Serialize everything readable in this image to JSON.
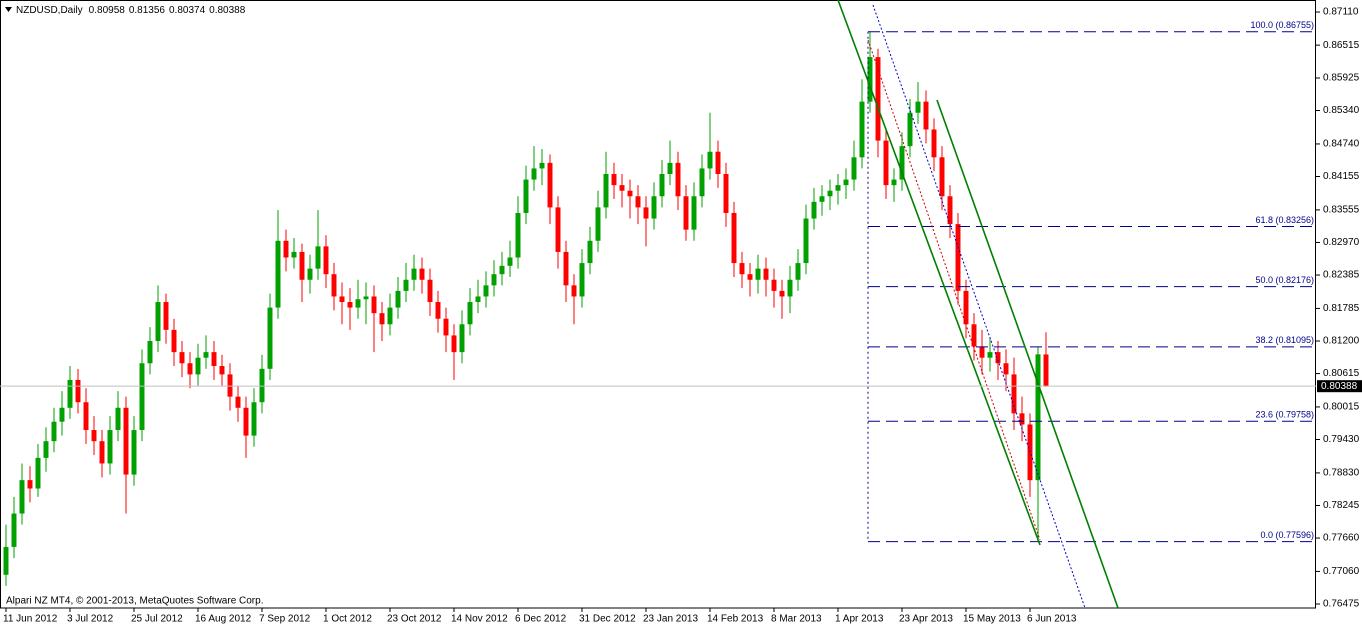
{
  "chart_data": {
    "type": "candlestick",
    "symbol": "NZDUSD,Daily",
    "footer": "Alpari NZ MT4, © 2001-2013, MetaQuotes Software Corp.",
    "bull_color": "#00a000",
    "bear_color": "#ff0000",
    "xlim": [
      -0.75,
      163.75
    ],
    "ylim": [
      0.76403,
      0.87326
    ],
    "xticks": [
      {
        "value": 0,
        "label": "11 Jun 2012"
      },
      {
        "value": 8,
        "label": "3 Jul 2012"
      },
      {
        "value": 16,
        "label": "25 Jul 2012"
      },
      {
        "value": 24,
        "label": "16 Aug 2012"
      },
      {
        "value": 32,
        "label": "7 Sep 2012"
      },
      {
        "value": 40,
        "label": "1 Oct 2012"
      },
      {
        "value": 48,
        "label": "23 Oct 2012"
      },
      {
        "value": 56,
        "label": "14 Nov 2012"
      },
      {
        "value": 64,
        "label": "6 Dec 2012"
      },
      {
        "value": 72,
        "label": "31 Dec 2012"
      },
      {
        "value": 80,
        "label": "23 Jan 2013"
      },
      {
        "value": 88,
        "label": "14 Feb 2013"
      },
      {
        "value": 96,
        "label": "8 Mar 2013"
      },
      {
        "value": 104,
        "label": "1 Apr 2013"
      },
      {
        "value": 112,
        "label": "23 Apr 2013"
      },
      {
        "value": 120,
        "label": "15 May 2013"
      },
      {
        "value": 128,
        "label": "6 Jun 2013"
      }
    ],
    "yticks": [
      {
        "value": 0.8711,
        "label": "0.87110"
      },
      0.86515,
      0.85925,
      {
        "value": 0.8534,
        "label": "0.85340"
      },
      {
        "value": 0.8474,
        "label": "0.84740"
      },
      0.84155,
      0.83555,
      {
        "value": 0.8297,
        "label": "0.82970"
      },
      0.82385,
      0.81785,
      {
        "value": 0.812,
        "label": "0.81200"
      },
      0.80615,
      0.80015,
      {
        "value": 0.7943,
        "label": "0.79430"
      },
      {
        "value": 0.7883,
        "label": "0.78830"
      },
      0.78245,
      {
        "value": 0.7766,
        "label": "0.77660"
      },
      {
        "value": 0.7706,
        "label": "0.77060"
      },
      0.76475
    ],
    "fibonacci": [
      {
        "label": "100.0 (0.86755)",
        "value": 0.86755
      },
      {
        "label": "61.8 (0.83256)",
        "value": 0.83256
      },
      {
        "label": "50.0 (0.82176)",
        "value": 0.82176
      },
      {
        "label": "38.2 (0.81095)",
        "value": 0.81095
      },
      {
        "label": "23.6 (0.79758)",
        "value": 0.79758
      },
      {
        "label": "0.0 (0.77596)",
        "value": 0.77596
      }
    ],
    "ohlc": [
      [
        0.77,
        0.779,
        0.768,
        0.775
      ],
      [
        0.775,
        0.784,
        0.773,
        0.781
      ],
      [
        0.781,
        0.79,
        0.779,
        0.787
      ],
      [
        0.787,
        0.7895,
        0.783,
        0.7855
      ],
      [
        0.7855,
        0.7935,
        0.784,
        0.791
      ],
      [
        0.791,
        0.7965,
        0.7885,
        0.794
      ],
      [
        0.794,
        0.8,
        0.792,
        0.7975
      ],
      [
        0.7975,
        0.803,
        0.795,
        0.8
      ],
      [
        0.8,
        0.8075,
        0.798,
        0.805
      ],
      [
        0.805,
        0.807,
        0.799,
        0.801
      ],
      [
        0.801,
        0.8035,
        0.7935,
        0.796
      ],
      [
        0.796,
        0.7985,
        0.7915,
        0.794
      ],
      [
        0.794,
        0.796,
        0.7875,
        0.79
      ],
      [
        0.79,
        0.7985,
        0.788,
        0.796
      ],
      [
        0.796,
        0.803,
        0.794,
        0.8
      ],
      [
        0.8,
        0.802,
        0.781,
        0.788
      ],
      [
        0.788,
        0.7985,
        0.786,
        0.796
      ],
      [
        0.796,
        0.8105,
        0.794,
        0.808
      ],
      [
        0.808,
        0.8145,
        0.806,
        0.812
      ],
      [
        0.812,
        0.822,
        0.81,
        0.819
      ],
      [
        0.819,
        0.8205,
        0.8115,
        0.814
      ],
      [
        0.814,
        0.816,
        0.8075,
        0.81
      ],
      [
        0.81,
        0.812,
        0.8055,
        0.808
      ],
      [
        0.808,
        0.81,
        0.8035,
        0.806
      ],
      [
        0.806,
        0.8115,
        0.804,
        0.809
      ],
      [
        0.809,
        0.813,
        0.807,
        0.81
      ],
      [
        0.81,
        0.812,
        0.805,
        0.8075
      ],
      [
        0.8075,
        0.8095,
        0.804,
        0.806
      ],
      [
        0.806,
        0.808,
        0.7995,
        0.802
      ],
      [
        0.802,
        0.804,
        0.7975,
        0.8
      ],
      [
        0.8,
        0.802,
        0.791,
        0.795
      ],
      [
        0.795,
        0.8035,
        0.793,
        0.801
      ],
      [
        0.801,
        0.8095,
        0.799,
        0.807
      ],
      [
        0.807,
        0.8205,
        0.805,
        0.818
      ],
      [
        0.818,
        0.8355,
        0.816,
        0.83
      ],
      [
        0.83,
        0.832,
        0.8245,
        0.827
      ],
      [
        0.827,
        0.8305,
        0.825,
        0.828
      ],
      [
        0.828,
        0.8295,
        0.819,
        0.823
      ],
      [
        0.823,
        0.8275,
        0.8205,
        0.825
      ],
      [
        0.825,
        0.8355,
        0.823,
        0.829
      ],
      [
        0.829,
        0.831,
        0.8215,
        0.824
      ],
      [
        0.824,
        0.826,
        0.8175,
        0.82
      ],
      [
        0.82,
        0.8225,
        0.815,
        0.819
      ],
      [
        0.819,
        0.8215,
        0.814,
        0.818
      ],
      [
        0.818,
        0.823,
        0.816,
        0.8195
      ],
      [
        0.8195,
        0.8225,
        0.815,
        0.82
      ],
      [
        0.82,
        0.822,
        0.81,
        0.817
      ],
      [
        0.817,
        0.819,
        0.812,
        0.815
      ],
      [
        0.815,
        0.8205,
        0.813,
        0.818
      ],
      [
        0.818,
        0.8235,
        0.816,
        0.821
      ],
      [
        0.821,
        0.826,
        0.819,
        0.823
      ],
      [
        0.823,
        0.8275,
        0.821,
        0.825
      ],
      [
        0.825,
        0.827,
        0.8205,
        0.823
      ],
      [
        0.823,
        0.825,
        0.8165,
        0.819
      ],
      [
        0.819,
        0.821,
        0.8135,
        0.816
      ],
      [
        0.816,
        0.818,
        0.81,
        0.813
      ],
      [
        0.813,
        0.815,
        0.805,
        0.81
      ],
      [
        0.81,
        0.8175,
        0.808,
        0.815
      ],
      [
        0.815,
        0.8215,
        0.813,
        0.819
      ],
      [
        0.819,
        0.823,
        0.817,
        0.82
      ],
      [
        0.82,
        0.8245,
        0.818,
        0.822
      ],
      [
        0.822,
        0.8265,
        0.82,
        0.824
      ],
      [
        0.824,
        0.828,
        0.822,
        0.8255
      ],
      [
        0.8255,
        0.83,
        0.8235,
        0.827
      ],
      [
        0.827,
        0.838,
        0.825,
        0.835
      ],
      [
        0.835,
        0.8435,
        0.833,
        0.841
      ],
      [
        0.841,
        0.847,
        0.839,
        0.843
      ],
      [
        0.843,
        0.8465,
        0.84,
        0.844
      ],
      [
        0.844,
        0.8455,
        0.833,
        0.836
      ],
      [
        0.836,
        0.838,
        0.825,
        0.828
      ],
      [
        0.828,
        0.83,
        0.819,
        0.822
      ],
      [
        0.822,
        0.824,
        0.815,
        0.82
      ],
      [
        0.82,
        0.8285,
        0.818,
        0.826
      ],
      [
        0.826,
        0.8325,
        0.824,
        0.83
      ],
      [
        0.83,
        0.839,
        0.828,
        0.836
      ],
      [
        0.836,
        0.846,
        0.834,
        0.842
      ],
      [
        0.842,
        0.844,
        0.8375,
        0.84
      ],
      [
        0.84,
        0.842,
        0.836,
        0.839
      ],
      [
        0.839,
        0.841,
        0.834,
        0.838
      ],
      [
        0.838,
        0.84,
        0.833,
        0.836
      ],
      [
        0.836,
        0.838,
        0.829,
        0.834
      ],
      [
        0.834,
        0.8405,
        0.832,
        0.838
      ],
      [
        0.838,
        0.8445,
        0.836,
        0.842
      ],
      [
        0.842,
        0.848,
        0.84,
        0.844
      ],
      [
        0.844,
        0.846,
        0.8355,
        0.838
      ],
      [
        0.838,
        0.84,
        0.83,
        0.832
      ],
      [
        0.832,
        0.8405,
        0.83,
        0.838
      ],
      [
        0.838,
        0.8455,
        0.836,
        0.843
      ],
      [
        0.843,
        0.853,
        0.841,
        0.846
      ],
      [
        0.846,
        0.848,
        0.8395,
        0.842
      ],
      [
        0.842,
        0.844,
        0.8325,
        0.835
      ],
      [
        0.835,
        0.837,
        0.8235,
        0.826
      ],
      [
        0.826,
        0.828,
        0.8215,
        0.824
      ],
      [
        0.824,
        0.826,
        0.82,
        0.823
      ],
      [
        0.823,
        0.8275,
        0.8205,
        0.825
      ],
      [
        0.825,
        0.827,
        0.82,
        0.823
      ],
      [
        0.823,
        0.825,
        0.818,
        0.821
      ],
      [
        0.821,
        0.823,
        0.816,
        0.82
      ],
      [
        0.82,
        0.8255,
        0.817,
        0.823
      ],
      [
        0.823,
        0.8285,
        0.821,
        0.826
      ],
      [
        0.826,
        0.8365,
        0.824,
        0.834
      ],
      [
        0.834,
        0.8395,
        0.832,
        0.837
      ],
      [
        0.837,
        0.84,
        0.8345,
        0.838
      ],
      [
        0.838,
        0.841,
        0.8355,
        0.839
      ],
      [
        0.839,
        0.842,
        0.8365,
        0.84
      ],
      [
        0.84,
        0.843,
        0.8375,
        0.841
      ],
      [
        0.841,
        0.848,
        0.839,
        0.845
      ],
      [
        0.845,
        0.859,
        0.843,
        0.855
      ],
      [
        0.855,
        0.8676,
        0.853,
        0.863
      ],
      [
        0.863,
        0.8645,
        0.845,
        0.848
      ],
      [
        0.848,
        0.85,
        0.8375,
        0.84
      ],
      [
        0.84,
        0.843,
        0.837,
        0.841
      ],
      [
        0.841,
        0.8495,
        0.839,
        0.847
      ],
      [
        0.847,
        0.8555,
        0.845,
        0.853
      ],
      [
        0.853,
        0.8585,
        0.851,
        0.855
      ],
      [
        0.855,
        0.857,
        0.8475,
        0.85
      ],
      [
        0.85,
        0.852,
        0.8425,
        0.845
      ],
      [
        0.845,
        0.847,
        0.8355,
        0.838
      ],
      [
        0.838,
        0.84,
        0.8305,
        0.833
      ],
      [
        0.833,
        0.835,
        0.8185,
        0.821
      ],
      [
        0.821,
        0.823,
        0.8125,
        0.815
      ],
      [
        0.815,
        0.817,
        0.8085,
        0.811
      ],
      [
        0.811,
        0.814,
        0.806,
        0.809
      ],
      [
        0.809,
        0.8125,
        0.8065,
        0.81
      ],
      [
        0.81,
        0.812,
        0.805,
        0.808
      ],
      [
        0.808,
        0.8105,
        0.803,
        0.806
      ],
      [
        0.806,
        0.809,
        0.796,
        0.799
      ],
      [
        0.799,
        0.802,
        0.794,
        0.797
      ],
      [
        0.797,
        0.799,
        0.784,
        0.787
      ],
      [
        0.787,
        0.811,
        0.776,
        0.8096
      ],
      [
        0.80958,
        0.81356,
        0.80374,
        0.80388
      ]
    ]
  }
}
